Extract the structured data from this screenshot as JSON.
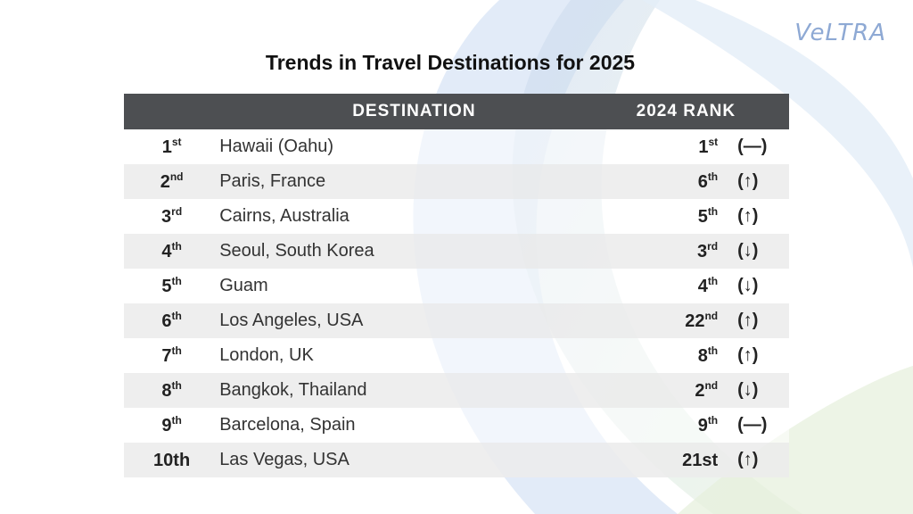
{
  "logo": "VeLTRA",
  "title": "Trends in Travel Destinations for 2025",
  "headers": {
    "destination": "DESTINATION",
    "rank_2024": "2024 RANK"
  },
  "rows": [
    {
      "rank_num": "1",
      "rank_sfx": "st",
      "destination": "Hawaii (Oahu)",
      "prev_num": "1",
      "prev_sfx": "st",
      "change": "(—)"
    },
    {
      "rank_num": "2",
      "rank_sfx": "nd",
      "destination": "Paris, France",
      "prev_num": "6",
      "prev_sfx": "th",
      "change": "(↑)"
    },
    {
      "rank_num": "3",
      "rank_sfx": "rd",
      "destination": "Cairns, Australia",
      "prev_num": "5",
      "prev_sfx": "th",
      "change": "(↑)"
    },
    {
      "rank_num": "4",
      "rank_sfx": "th",
      "destination": "Seoul, South Korea",
      "prev_num": "3",
      "prev_sfx": "rd",
      "change": "(↓)"
    },
    {
      "rank_num": "5",
      "rank_sfx": "th",
      "destination": "Guam",
      "prev_num": "4",
      "prev_sfx": "th",
      "change": "(↓)"
    },
    {
      "rank_num": "6",
      "rank_sfx": "th",
      "destination": "Los Angeles, USA",
      "prev_num": "22",
      "prev_sfx": "nd",
      "change": "(↑)"
    },
    {
      "rank_num": "7",
      "rank_sfx": "th",
      "destination": "London, UK",
      "prev_num": "8",
      "prev_sfx": "th",
      "change": "(↑)"
    },
    {
      "rank_num": "8",
      "rank_sfx": "th",
      "destination": "Bangkok, Thailand",
      "prev_num": "2",
      "prev_sfx": "nd",
      "change": "(↓)"
    },
    {
      "rank_num": "9",
      "rank_sfx": "th",
      "destination": "Barcelona, Spain",
      "prev_num": "9",
      "prev_sfx": "th",
      "change": "(—)"
    },
    {
      "rank_num": "10th",
      "rank_sfx": "",
      "destination": "Las Vegas, USA",
      "prev_num": "21st",
      "prev_sfx": "",
      "change": "(↑)"
    }
  ]
}
